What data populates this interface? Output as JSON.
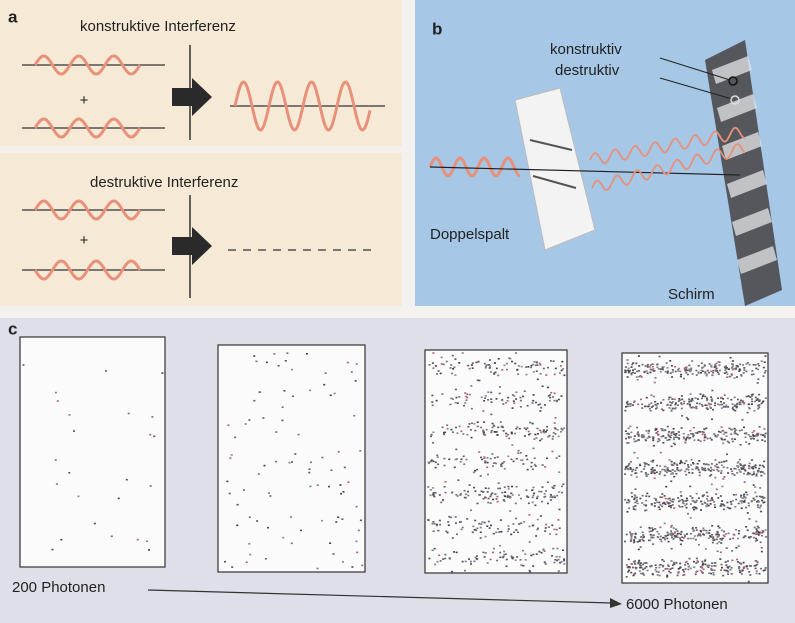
{
  "panels": {
    "a": {
      "label": "a",
      "constructive": {
        "title": "konstruktive Interferenz",
        "operator": "+"
      },
      "destructive": {
        "title": "destruktive Interferenz",
        "operator": "+"
      }
    },
    "b": {
      "label": "b",
      "constructive": "konstruktiv",
      "destructive": "destruktiv",
      "slit": "Doppelspalt",
      "screen": "Schirm"
    },
    "c": {
      "label": "c",
      "start": "200 Photonen",
      "end": "6000 Photonen"
    }
  }
}
